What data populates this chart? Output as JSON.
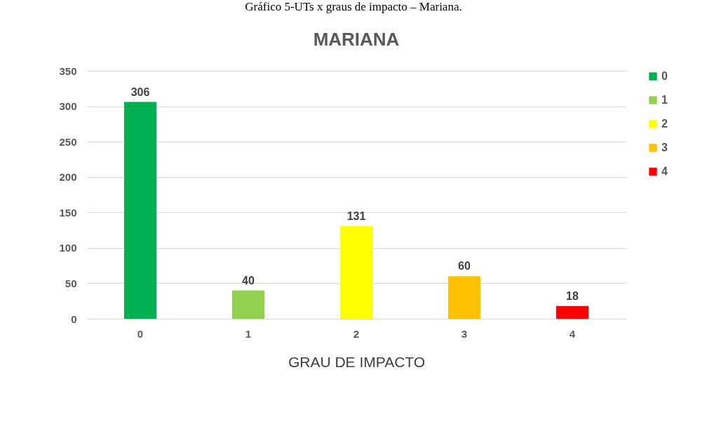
{
  "chart_data": {
    "type": "bar",
    "title": "MARIANA",
    "xlabel": "GRAU DE IMPACTO",
    "annotations": [
      "Gráfico 5-UTs x graus de impacto – Mariana."
    ],
    "categories": [
      "0",
      "1",
      "2",
      "3",
      "4"
    ],
    "series": [
      {
        "name": "0",
        "color": "#00b050",
        "values": [
          306,
          null,
          null,
          null,
          null
        ]
      },
      {
        "name": "1",
        "color": "#92d050",
        "values": [
          null,
          40,
          null,
          null,
          null
        ]
      },
      {
        "name": "2",
        "color": "#ffff00",
        "values": [
          null,
          null,
          131,
          null,
          null
        ]
      },
      {
        "name": "3",
        "color": "#ffc000",
        "values": [
          null,
          null,
          null,
          60,
          null
        ]
      },
      {
        "name": "4",
        "color": "#ff0000",
        "values": [
          null,
          null,
          null,
          null,
          18
        ]
      }
    ],
    "ylim": [
      0,
      350
    ],
    "yticks": [
      0,
      50,
      100,
      150,
      200,
      250,
      300,
      350
    ],
    "grid": "y",
    "legend": "right",
    "data_labels": true
  }
}
